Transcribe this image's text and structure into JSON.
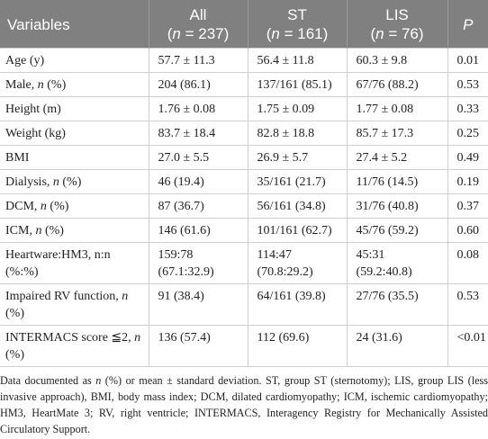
{
  "table": {
    "header": [
      [
        [
          {
            "text": "Variables"
          }
        ]
      ],
      [
        [
          {
            "text": "All"
          }
        ],
        [
          {
            "text": "("
          },
          {
            "text": "n",
            "italic": true
          },
          {
            "text": " = 237)"
          }
        ]
      ],
      [
        [
          {
            "text": "ST"
          }
        ],
        [
          {
            "text": "("
          },
          {
            "text": "n",
            "italic": true
          },
          {
            "text": " = 161)"
          }
        ]
      ],
      [
        [
          {
            "text": "LIS"
          }
        ],
        [
          {
            "text": "("
          },
          {
            "text": "n",
            "italic": true
          },
          {
            "text": " = 76)"
          }
        ]
      ],
      [
        [
          {
            "text": "P",
            "italic": true
          }
        ]
      ]
    ],
    "rows": [
      [
        [
          {
            "text": "Age (y)"
          }
        ],
        [
          {
            "text": "57.7 ± 11.3"
          }
        ],
        [
          {
            "text": "56.4 ± 11.8"
          }
        ],
        [
          {
            "text": "60.3 ± 9.8"
          }
        ],
        [
          {
            "text": "0.01"
          }
        ]
      ],
      [
        [
          {
            "text": "Male, "
          },
          {
            "text": "n",
            "italic": true
          },
          {
            "text": " (%)"
          }
        ],
        [
          {
            "text": "204 (86.1)"
          }
        ],
        [
          {
            "text": "137/161 (85.1)"
          }
        ],
        [
          {
            "text": "67/76 (88.2)"
          }
        ],
        [
          {
            "text": "0.53"
          }
        ]
      ],
      [
        [
          {
            "text": "Height (m)"
          }
        ],
        [
          {
            "text": "1.76 ± 0.08"
          }
        ],
        [
          {
            "text": "1.75 ± 0.09"
          }
        ],
        [
          {
            "text": "1.77 ± 0.08"
          }
        ],
        [
          {
            "text": "0.33"
          }
        ]
      ],
      [
        [
          {
            "text": "Weight (kg)"
          }
        ],
        [
          {
            "text": "83.7 ± 18.4"
          }
        ],
        [
          {
            "text": "82.8 ± 18.8"
          }
        ],
        [
          {
            "text": "85.7 ± 17.3"
          }
        ],
        [
          {
            "text": "0.25"
          }
        ]
      ],
      [
        [
          {
            "text": "BMI"
          }
        ],
        [
          {
            "text": "27.0 ± 5.5"
          }
        ],
        [
          {
            "text": "26.9 ± 5.7"
          }
        ],
        [
          {
            "text": "27.4 ± 5.2"
          }
        ],
        [
          {
            "text": "0.49"
          }
        ]
      ],
      [
        [
          {
            "text": "Dialysis, "
          },
          {
            "text": "n",
            "italic": true
          },
          {
            "text": " (%)"
          }
        ],
        [
          {
            "text": "46 (19.4)"
          }
        ],
        [
          {
            "text": "35/161 (21.7)"
          }
        ],
        [
          {
            "text": "11/76 (14.5)"
          }
        ],
        [
          {
            "text": "0.19"
          }
        ]
      ],
      [
        [
          {
            "text": "DCM, "
          },
          {
            "text": "n",
            "italic": true
          },
          {
            "text": " (%)"
          }
        ],
        [
          {
            "text": "87 (36.7)"
          }
        ],
        [
          {
            "text": "56/161 (34.8)"
          }
        ],
        [
          {
            "text": "31/76 (40.8)"
          }
        ],
        [
          {
            "text": "0.37"
          }
        ]
      ],
      [
        [
          {
            "text": "ICM, "
          },
          {
            "text": "n",
            "italic": true
          },
          {
            "text": " (%)"
          }
        ],
        [
          {
            "text": "146 (61.6)"
          }
        ],
        [
          {
            "text": "101/161 (62.7)"
          }
        ],
        [
          {
            "text": "45/76 (59.2)"
          }
        ],
        [
          {
            "text": "0.60"
          }
        ]
      ],
      [
        [
          {
            "text": "Heartware:HM3, n:n (%:%)"
          }
        ],
        [
          {
            "text": "159:78 (67.1:32.9)"
          }
        ],
        [
          {
            "text": "114:47 (70.8:29.2)"
          }
        ],
        [
          {
            "text": "45:31 (59.2:40.8)"
          }
        ],
        [
          {
            "text": "0.08"
          }
        ]
      ],
      [
        [
          {
            "text": "Impaired RV function, "
          },
          {
            "text": "n",
            "italic": true
          },
          {
            "text": " (%)"
          }
        ],
        [
          {
            "text": "91 (38.4)"
          }
        ],
        [
          {
            "text": "64/161 (39.8)"
          }
        ],
        [
          {
            "text": "27/76 (35.5)"
          }
        ],
        [
          {
            "text": "0.53"
          }
        ]
      ],
      [
        [
          {
            "text": "INTERMACS score ≦2, "
          },
          {
            "text": "n",
            "italic": true
          },
          {
            "text": " (%)"
          }
        ],
        [
          {
            "text": "136 (57.4)"
          }
        ],
        [
          {
            "text": "112 (69.6)"
          }
        ],
        [
          {
            "text": "24 (31.6)"
          }
        ],
        [
          {
            "text": "<0.01"
          }
        ]
      ]
    ]
  },
  "footnote": [
    {
      "text": "Data documented as "
    },
    {
      "text": "n",
      "italic": true
    },
    {
      "text": " (%) or mean ± standard deviation. ST, group ST (sternotomy); LIS, group LIS (less invasive approach), BMI, body mass index; DCM, dilated cardiomyopathy; ICM, ischemic cardiomyopathy; HM3, HeartMate 3; RV, right ventricle; INTERMACS, Interagency Registry for Mechanically Assisted Circulatory Support."
    }
  ]
}
